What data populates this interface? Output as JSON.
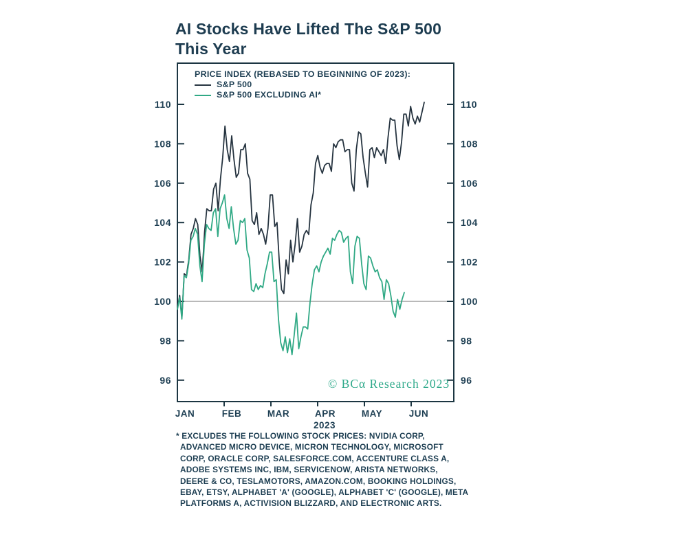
{
  "title": {
    "line1": "AI Stocks Have Lifted The S&P 500",
    "line2": "This Year"
  },
  "watermark": "© BCα Research 2023",
  "colors": {
    "text_navy": "#1d3e52",
    "frame": "#1c3642",
    "baseline_gray": "#8f8f8f",
    "sp500_line": "#263440",
    "ex_ai_line": "#30a985",
    "watermark_green": "#2ea98a",
    "background": "#ffffff"
  },
  "footnote": {
    "lines": [
      "* EXCLUDES THE FOLLOWING STOCK PRICES: NVIDIA CORP,",
      "ADVANCED MICRO DEVICE, MICRON TECHNOLOGY, MICROSOFT",
      "CORP, ORACLE CORP, SALESFORCE.COM, ACCENTURE CLASS A,",
      "ADOBE SYSTEMS INC, IBM, SERVICENOW, ARISTA NETWORKS,",
      "DEERE & CO, TESLAMOTORS, AMAZON.COM, BOOKING HOLDINGS,",
      "EBAY, ETSY, ALPHABET 'A' (GOOGLE), ALPHABET 'C' (GOOGLE), META",
      "PLATFORMS A, ACTIVISION BLIZZARD, AND ELECTRONIC ARTS."
    ]
  },
  "chart_data": {
    "type": "line",
    "legend_title": "PRICE INDEX (REBASED TO BEGINNING OF 2023):",
    "legend_position": "top-left-inside",
    "grid": false,
    "baseline_value": 100,
    "x_axis": {
      "tick_labels": [
        "JAN",
        "FEB",
        "MAR",
        "APR",
        "MAY",
        "JUN"
      ],
      "year_label": "2023",
      "span_months": [
        "2023-01",
        "2023-06"
      ]
    },
    "y_axis": {
      "ticks": [
        110,
        108,
        106,
        104,
        102,
        100,
        98,
        96
      ],
      "range": [
        94.9,
        112.1
      ],
      "sides": "both"
    },
    "series": [
      {
        "name": "S&P 500",
        "color": "#263440",
        "x_span_fraction": 0.893,
        "values": [
          99.6,
          100.3,
          99.2,
          101.4,
          101.3,
          102.1,
          103.4,
          103.7,
          104.2,
          103.9,
          102.3,
          101.5,
          103.5,
          104.7,
          104.6,
          104.6,
          105.7,
          106.0,
          104.6,
          106.2,
          107.3,
          108.9,
          107.7,
          107.1,
          108.4,
          107.2,
          106.3,
          106.5,
          107.7,
          107.7,
          108.0,
          106.5,
          106.2,
          104.1,
          103.9,
          104.5,
          103.4,
          103.7,
          103.4,
          102.9,
          103.7,
          105.4,
          105.4,
          103.8,
          104.0,
          102.0,
          100.6,
          100.4,
          102.1,
          101.4,
          103.1,
          102.0,
          102.9,
          104.2,
          102.5,
          102.8,
          103.4,
          103.6,
          103.4,
          104.9,
          105.5,
          107.0,
          107.4,
          106.8,
          106.5,
          106.9,
          107.0,
          107.0,
          106.6,
          108.0,
          107.8,
          108.1,
          108.2,
          108.2,
          107.6,
          107.7,
          107.7,
          106.0,
          105.6,
          107.7,
          108.6,
          108.5,
          107.3,
          106.5,
          105.8,
          107.7,
          107.8,
          107.3,
          107.8,
          107.6,
          107.4,
          107.7,
          107.0,
          108.3,
          109.3,
          109.2,
          109.2,
          107.9,
          107.2,
          108.1,
          109.5,
          109.5,
          108.9,
          109.9,
          109.3,
          109.0,
          109.4,
          109.1,
          109.6,
          110.1
        ]
      },
      {
        "name": "S&P 500 EXCLUDING AI*",
        "color": "#30a985",
        "x_span_fraction": 0.821,
        "values": [
          99.6,
          100.2,
          99.1,
          101.3,
          101.2,
          101.9,
          103.1,
          103.3,
          103.7,
          103.4,
          101.8,
          101.0,
          102.9,
          103.9,
          103.7,
          103.6,
          104.5,
          104.7,
          103.3,
          104.7,
          105.0,
          105.4,
          104.2,
          103.7,
          104.8,
          103.7,
          102.9,
          103.1,
          104.1,
          104.0,
          104.2,
          102.6,
          102.2,
          100.6,
          100.5,
          100.9,
          100.6,
          100.8,
          100.7,
          101.4,
          101.9,
          102.5,
          102.5,
          101.0,
          101.1,
          99.1,
          97.9,
          97.5,
          98.2,
          97.4,
          98.1,
          97.3,
          98.3,
          99.4,
          97.6,
          98.2,
          98.7,
          98.7,
          98.6,
          99.9,
          100.9,
          101.6,
          101.8,
          101.5,
          102.0,
          102.3,
          102.5,
          102.7,
          102.4,
          103.2,
          103.1,
          103.4,
          103.6,
          103.5,
          103.0,
          103.2,
          103.3,
          101.5,
          100.9,
          102.8,
          103.3,
          103.2,
          101.9,
          100.9,
          100.6,
          102.3,
          102.2,
          101.8,
          101.5,
          101.6,
          101.2,
          101.0,
          100.1,
          101.1,
          100.9,
          100.3,
          99.5,
          99.2,
          100.1,
          99.6,
          100.1,
          100.45
        ]
      }
    ]
  }
}
